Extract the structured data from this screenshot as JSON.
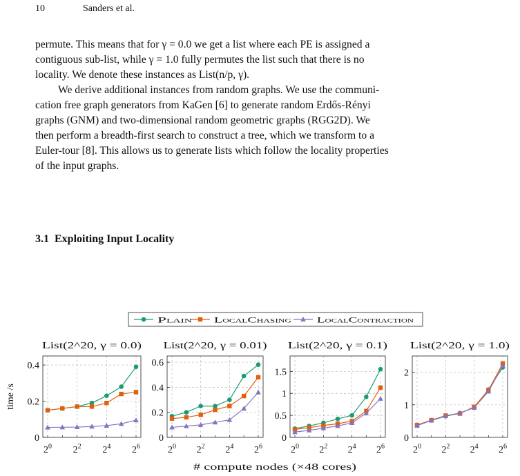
{
  "header": {
    "page_number": "10",
    "authors": "Sanders et al."
  },
  "paragraph1": [
    "permute. This means that for γ = 0.0 we get a list where each PE is assigned a",
    "contiguous sub-list, while γ = 1.0 fully permutes the list such that there is no",
    "locality. We denote these instances as List(n/p, γ)."
  ],
  "paragraph2": [
    "We derive additional instances from random graphs. We use the communi-",
    "cation free graph generators from KaGen [6] to generate random Erdős-Rényi",
    "graphs (GNM) and two-dimensional random geometric graphs (RGG2D). We",
    "then perform a breadth-first search to construct a tree, which we transform to a",
    "Euler-tour [8]. This allows us to generate lists which follow the locality properties",
    "of the input graphs."
  ],
  "section": {
    "number": "3.1",
    "title": "Exploiting Input Locality"
  },
  "figure": {
    "ylabel": "time /s",
    "xlabel": "# compute nodes (×48 cores)",
    "legend": [
      "Plain",
      "LocalChasing",
      "LocalContraction"
    ]
  },
  "colors": {
    "plain": "#1a9c72",
    "localchasing": "#e0600f",
    "localcontraction": "#8474c0"
  },
  "chart_data": [
    {
      "type": "line",
      "title": "List(2^20, γ = 0.0)",
      "x": [
        1,
        2,
        4,
        8,
        16,
        32,
        64
      ],
      "xticks": [
        "2^0",
        "2^2",
        "2^4",
        "2^6"
      ],
      "ylim": [
        0,
        0.45
      ],
      "yticks": [
        0,
        0.2,
        0.4
      ],
      "series": [
        {
          "name": "Plain",
          "values": [
            0.15,
            0.16,
            0.17,
            0.19,
            0.23,
            0.28,
            0.39
          ]
        },
        {
          "name": "LocalChasing",
          "values": [
            0.15,
            0.16,
            0.17,
            0.17,
            0.19,
            0.24,
            0.25
          ]
        },
        {
          "name": "LocalContraction",
          "values": [
            0.055,
            0.056,
            0.057,
            0.06,
            0.065,
            0.075,
            0.095
          ]
        }
      ]
    },
    {
      "type": "line",
      "title": "List(2^20, γ = 0.01)",
      "x": [
        1,
        2,
        4,
        8,
        16,
        32,
        64
      ],
      "xticks": [
        "2^0",
        "2^2",
        "2^4",
        "2^6"
      ],
      "ylim": [
        0,
        0.65
      ],
      "yticks": [
        0,
        0.2,
        0.4,
        0.6
      ],
      "series": [
        {
          "name": "Plain",
          "values": [
            0.17,
            0.2,
            0.25,
            0.25,
            0.3,
            0.49,
            0.58
          ]
        },
        {
          "name": "LocalChasing",
          "values": [
            0.15,
            0.16,
            0.18,
            0.22,
            0.25,
            0.33,
            0.48
          ]
        },
        {
          "name": "LocalContraction",
          "values": [
            0.08,
            0.09,
            0.1,
            0.12,
            0.14,
            0.23,
            0.36
          ]
        }
      ]
    },
    {
      "type": "line",
      "title": "List(2^20, γ = 0.1)",
      "x": [
        1,
        2,
        4,
        8,
        16,
        32,
        64
      ],
      "xticks": [
        "2^0",
        "2^2",
        "2^4",
        "2^6"
      ],
      "ylim": [
        0,
        1.85
      ],
      "yticks": [
        0,
        0.5,
        1,
        1.5
      ],
      "series": [
        {
          "name": "Plain",
          "values": [
            0.2,
            0.26,
            0.33,
            0.42,
            0.5,
            0.92,
            1.55
          ]
        },
        {
          "name": "LocalChasing",
          "values": [
            0.18,
            0.22,
            0.27,
            0.31,
            0.37,
            0.6,
            1.13
          ]
        },
        {
          "name": "LocalContraction",
          "values": [
            0.12,
            0.16,
            0.21,
            0.26,
            0.33,
            0.55,
            0.88
          ]
        }
      ]
    },
    {
      "type": "line",
      "title": "List(2^20, γ = 1.0)",
      "x": [
        1,
        2,
        4,
        8,
        16,
        32,
        64
      ],
      "xticks": [
        "2^0",
        "2^2",
        "2^4",
        "2^6"
      ],
      "ylim": [
        0,
        2.5
      ],
      "yticks": [
        0,
        1,
        2
      ],
      "series": [
        {
          "name": "Plain",
          "values": [
            0.38,
            0.52,
            0.65,
            0.74,
            0.92,
            1.47,
            2.15
          ]
        },
        {
          "name": "LocalChasing",
          "values": [
            0.38,
            0.53,
            0.67,
            0.73,
            0.94,
            1.45,
            2.27
          ]
        },
        {
          "name": "LocalContraction",
          "values": [
            0.36,
            0.52,
            0.66,
            0.75,
            0.91,
            1.41,
            2.2
          ]
        }
      ]
    }
  ]
}
